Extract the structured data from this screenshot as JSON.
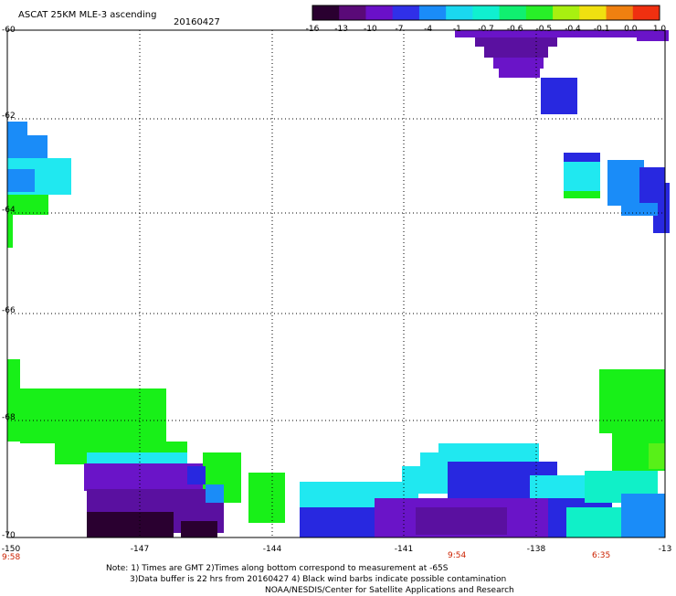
{
  "header": {
    "title": "ASCAT 25KM MLE-3 ascending",
    "date": "20160427"
  },
  "colorbar": {
    "labels": [
      "-16",
      "-13",
      "-10",
      "-7",
      "-4",
      "-1",
      "-0.7",
      "-0.6",
      "-0.5",
      "-0.4",
      "-0.1",
      "0.0",
      "1.0"
    ],
    "colors": [
      "#2a0030",
      "#5a0a78",
      "#6a10c8",
      "#3030e8",
      "#1a8cf8",
      "#1ad8f0",
      "#10f0d0",
      "#10f070",
      "#28f028",
      "#a8f010",
      "#f0e010",
      "#f08010",
      "#f03010"
    ]
  },
  "axes": {
    "y_labels": [
      "-60",
      "-62",
      "-64",
      "-66",
      "-68",
      "-70"
    ],
    "x_labels": [
      "-147",
      "-144",
      "-141",
      "-138"
    ],
    "x_left": "-150",
    "x_right": "-13",
    "time_left": "9:58",
    "time_mid": "9:54",
    "time_right": "6:35"
  },
  "footer": {
    "line1": "Note: 1) Times are GMT 2)Times along bottom correspond to measurement at -65S",
    "line2": "3)Data buffer is 22 hrs from 20160427 4) Black wind barbs indicate possible contamination",
    "line3": "NOAA/NESDIS/Center for Satellite Applications and Research"
  },
  "palette": {
    "dark": "#2a0030",
    "purple": "#5a10a0",
    "violet": "#6a14c8",
    "blue": "#2828e0",
    "azure": "#1a8cf8",
    "cyan": "#20e8f0",
    "aqua": "#10f0c8",
    "green": "#18f018",
    "lime": "#58f018"
  }
}
